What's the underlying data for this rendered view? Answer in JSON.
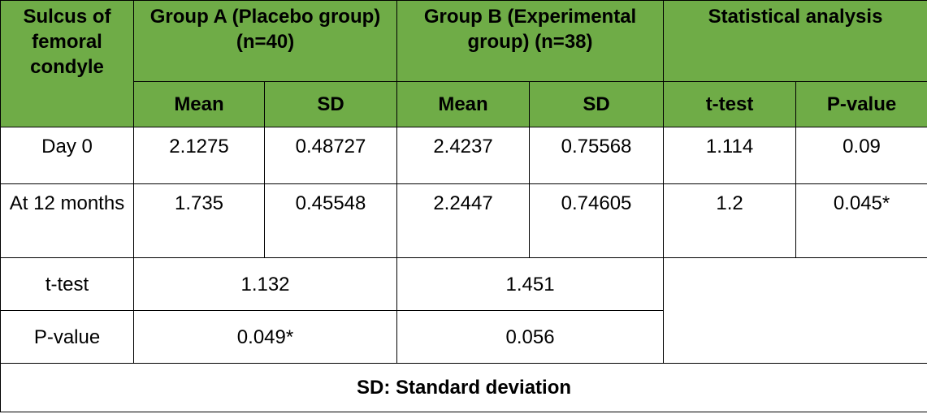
{
  "table": {
    "header": {
      "row_label": "Sulcus of femoral condyle",
      "group_a": "Group A (Placebo group) (n=40)",
      "group_b": "Group B (Experimental group) (n=38)",
      "stats": "Statistical analysis",
      "mean_a": "Mean",
      "sd_a": "SD",
      "mean_b": "Mean",
      "sd_b": "SD",
      "ttest": "t-test",
      "pvalue": "P-value"
    },
    "rows": [
      {
        "label": "Day 0",
        "mean_a": "2.1275",
        "sd_a": "0.48727",
        "mean_b": "2.4237",
        "sd_b": "0.75568",
        "ttest": "1.114",
        "pvalue": "0.09"
      },
      {
        "label": "At 12 months",
        "mean_a": "1.735",
        "sd_a": "0.45548",
        "mean_b": "2.2447",
        "sd_b": "0.74605",
        "ttest": "1.2",
        "pvalue": "0.045*"
      }
    ],
    "summary": [
      {
        "label": "t-test",
        "group_a": "1.132",
        "group_b": "1.451"
      },
      {
        "label": "P-value",
        "group_a": "0.049*",
        "group_b": "0.056"
      }
    ],
    "footer": "SD: Standard deviation"
  }
}
